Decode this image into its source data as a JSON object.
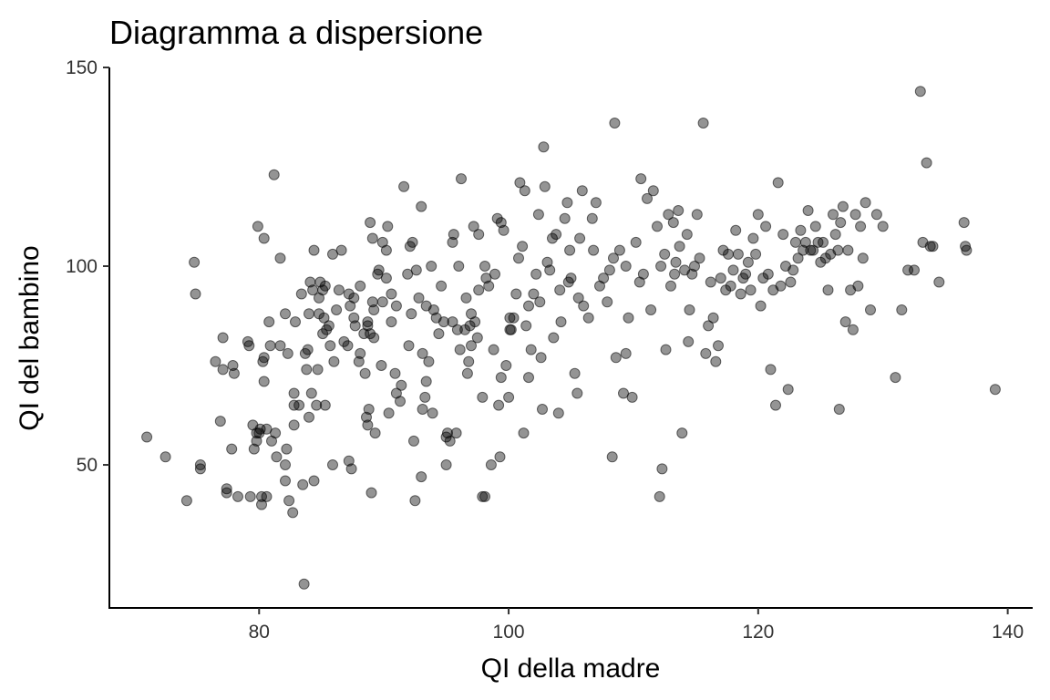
{
  "chart_data": {
    "type": "scatter",
    "title": "Diagramma a dispersione",
    "xlabel": "QI della madre",
    "ylabel": "QI del bambino",
    "xlim": [
      68,
      142
    ],
    "ylim": [
      14,
      150
    ],
    "xticks": [
      80,
      100,
      120,
      140
    ],
    "yticks": [
      50,
      100,
      150
    ],
    "grid": false,
    "point_color": "#000000",
    "point_opacity": 0.42,
    "points": [
      [
        71.0,
        57
      ],
      [
        72.5,
        52
      ],
      [
        74.2,
        41
      ],
      [
        74.8,
        101
      ],
      [
        74.9,
        93
      ],
      [
        75.3,
        50
      ],
      [
        75.3,
        49
      ],
      [
        76.5,
        76
      ],
      [
        76.9,
        61
      ],
      [
        77.1,
        82
      ],
      [
        77.1,
        74
      ],
      [
        77.4,
        44
      ],
      [
        77.4,
        43
      ],
      [
        77.8,
        54
      ],
      [
        77.9,
        75
      ],
      [
        78.0,
        73
      ],
      [
        78.3,
        42
      ],
      [
        79.1,
        81
      ],
      [
        79.2,
        80
      ],
      [
        79.3,
        42
      ],
      [
        79.5,
        60
      ],
      [
        79.6,
        54
      ],
      [
        79.8,
        58
      ],
      [
        79.8,
        56
      ],
      [
        79.9,
        110
      ],
      [
        80.0,
        58
      ],
      [
        80.1,
        59
      ],
      [
        80.2,
        42
      ],
      [
        80.2,
        40
      ],
      [
        80.3,
        76
      ],
      [
        80.4,
        77
      ],
      [
        80.4,
        71
      ],
      [
        80.4,
        107
      ],
      [
        80.6,
        59
      ],
      [
        80.6,
        42
      ],
      [
        80.8,
        86
      ],
      [
        80.9,
        80
      ],
      [
        81.0,
        56
      ],
      [
        81.2,
        123
      ],
      [
        81.3,
        58
      ],
      [
        81.4,
        52
      ],
      [
        81.7,
        102
      ],
      [
        81.7,
        80
      ],
      [
        82.1,
        88
      ],
      [
        82.1,
        46
      ],
      [
        82.1,
        50
      ],
      [
        82.2,
        54
      ],
      [
        82.3,
        78
      ],
      [
        82.4,
        41
      ],
      [
        82.7,
        38
      ],
      [
        82.8,
        65
      ],
      [
        82.8,
        68
      ],
      [
        82.8,
        60
      ],
      [
        82.9,
        86
      ],
      [
        83.2,
        65
      ],
      [
        83.4,
        93
      ],
      [
        83.5,
        45
      ],
      [
        83.6,
        20
      ],
      [
        83.7,
        78
      ],
      [
        83.8,
        74
      ],
      [
        83.9,
        79
      ],
      [
        84.0,
        62
      ],
      [
        84.0,
        88
      ],
      [
        84.1,
        96
      ],
      [
        84.2,
        68
      ],
      [
        84.3,
        94
      ],
      [
        84.4,
        104
      ],
      [
        84.4,
        46
      ],
      [
        84.6,
        65
      ],
      [
        84.7,
        74
      ],
      [
        84.8,
        92
      ],
      [
        84.8,
        88
      ],
      [
        84.9,
        96
      ],
      [
        85.1,
        83
      ],
      [
        85.1,
        94
      ],
      [
        85.2,
        87
      ],
      [
        85.3,
        95
      ],
      [
        85.3,
        65
      ],
      [
        85.4,
        84
      ],
      [
        85.6,
        85
      ],
      [
        85.7,
        80
      ],
      [
        85.9,
        103
      ],
      [
        85.9,
        50
      ],
      [
        86.0,
        76
      ],
      [
        86.2,
        89
      ],
      [
        86.4,
        94
      ],
      [
        86.6,
        104
      ],
      [
        86.8,
        81
      ],
      [
        87.1,
        80
      ],
      [
        87.2,
        51
      ],
      [
        87.2,
        93
      ],
      [
        87.3,
        90
      ],
      [
        87.4,
        49
      ],
      [
        87.6,
        87
      ],
      [
        87.6,
        92
      ],
      [
        87.7,
        85
      ],
      [
        88.0,
        76
      ],
      [
        88.1,
        78
      ],
      [
        88.1,
        95
      ],
      [
        88.4,
        83
      ],
      [
        88.5,
        73
      ],
      [
        88.6,
        62
      ],
      [
        88.7,
        86
      ],
      [
        88.7,
        85
      ],
      [
        88.7,
        60
      ],
      [
        88.8,
        64
      ],
      [
        88.9,
        83
      ],
      [
        88.9,
        111
      ],
      [
        89.0,
        43
      ],
      [
        89.1,
        91
      ],
      [
        89.1,
        107
      ],
      [
        89.2,
        89
      ],
      [
        89.2,
        82
      ],
      [
        89.3,
        58
      ],
      [
        89.5,
        98
      ],
      [
        89.6,
        99
      ],
      [
        89.8,
        75
      ],
      [
        89.9,
        91
      ],
      [
        89.9,
        106
      ],
      [
        90.2,
        104
      ],
      [
        90.2,
        97
      ],
      [
        90.3,
        110
      ],
      [
        90.4,
        63
      ],
      [
        90.6,
        93
      ],
      [
        90.6,
        86
      ],
      [
        90.9,
        73
      ],
      [
        91.0,
        90
      ],
      [
        91.0,
        68
      ],
      [
        91.3,
        66
      ],
      [
        91.4,
        70
      ],
      [
        91.6,
        120
      ],
      [
        91.9,
        98
      ],
      [
        92.0,
        80
      ],
      [
        92.1,
        105
      ],
      [
        92.2,
        88
      ],
      [
        92.3,
        106
      ],
      [
        92.4,
        56
      ],
      [
        92.5,
        41
      ],
      [
        92.6,
        99
      ],
      [
        92.8,
        92
      ],
      [
        93.0,
        47
      ],
      [
        93.0,
        115
      ],
      [
        93.1,
        78
      ],
      [
        93.1,
        64
      ],
      [
        93.3,
        67
      ],
      [
        93.4,
        90
      ],
      [
        93.4,
        71
      ],
      [
        93.6,
        76
      ],
      [
        93.8,
        100
      ],
      [
        93.9,
        63
      ],
      [
        94.0,
        89
      ],
      [
        94.2,
        87
      ],
      [
        94.4,
        83
      ],
      [
        94.6,
        95
      ],
      [
        94.8,
        86
      ],
      [
        95.0,
        50
      ],
      [
        95.0,
        57
      ],
      [
        95.1,
        58
      ],
      [
        95.3,
        56
      ],
      [
        95.5,
        86
      ],
      [
        95.5,
        106
      ],
      [
        95.6,
        108
      ],
      [
        95.8,
        58
      ],
      [
        95.9,
        84
      ],
      [
        96.0,
        100
      ],
      [
        96.1,
        79
      ],
      [
        96.2,
        122
      ],
      [
        96.5,
        84
      ],
      [
        96.6,
        92
      ],
      [
        96.7,
        73
      ],
      [
        96.8,
        76
      ],
      [
        96.9,
        85
      ],
      [
        97.0,
        80
      ],
      [
        97.0,
        88
      ],
      [
        97.2,
        110
      ],
      [
        97.3,
        86
      ],
      [
        97.5,
        82
      ],
      [
        97.6,
        94
      ],
      [
        97.6,
        108
      ],
      [
        97.9,
        67
      ],
      [
        97.9,
        42
      ],
      [
        98.1,
        42
      ],
      [
        98.1,
        100
      ],
      [
        98.2,
        97
      ],
      [
        98.4,
        95
      ],
      [
        98.6,
        50
      ],
      [
        98.8,
        79
      ],
      [
        98.9,
        98
      ],
      [
        99.1,
        112
      ],
      [
        99.2,
        65
      ],
      [
        99.3,
        52
      ],
      [
        99.4,
        72
      ],
      [
        99.4,
        111
      ],
      [
        99.6,
        109
      ],
      [
        99.8,
        75
      ],
      [
        100.0,
        67
      ],
      [
        100.1,
        84
      ],
      [
        100.1,
        87
      ],
      [
        100.2,
        84
      ],
      [
        100.4,
        87
      ],
      [
        100.6,
        93
      ],
      [
        100.8,
        102
      ],
      [
        100.9,
        121
      ],
      [
        101.1,
        105
      ],
      [
        101.2,
        58
      ],
      [
        101.3,
        119
      ],
      [
        101.4,
        85
      ],
      [
        101.6,
        72
      ],
      [
        101.6,
        90
      ],
      [
        101.8,
        79
      ],
      [
        102.0,
        93
      ],
      [
        102.2,
        98
      ],
      [
        102.4,
        113
      ],
      [
        102.5,
        91
      ],
      [
        102.6,
        77
      ],
      [
        102.7,
        64
      ],
      [
        102.8,
        130
      ],
      [
        102.9,
        120
      ],
      [
        103.1,
        101
      ],
      [
        103.3,
        99
      ],
      [
        103.5,
        107
      ],
      [
        103.6,
        82
      ],
      [
        103.8,
        108
      ],
      [
        104.0,
        63
      ],
      [
        104.1,
        94
      ],
      [
        104.2,
        86
      ],
      [
        104.5,
        112
      ],
      [
        104.7,
        116
      ],
      [
        104.8,
        96
      ],
      [
        104.9,
        104
      ],
      [
        105.0,
        97
      ],
      [
        105.3,
        73
      ],
      [
        105.5,
        68
      ],
      [
        105.6,
        92
      ],
      [
        105.7,
        107
      ],
      [
        105.9,
        119
      ],
      [
        106.0,
        90
      ],
      [
        106.4,
        87
      ],
      [
        106.7,
        112
      ],
      [
        106.8,
        104
      ],
      [
        107.0,
        116
      ],
      [
        107.3,
        95
      ],
      [
        107.6,
        97
      ],
      [
        107.9,
        91
      ],
      [
        108.1,
        99
      ],
      [
        108.3,
        52
      ],
      [
        108.4,
        102
      ],
      [
        108.5,
        136
      ],
      [
        108.6,
        77
      ],
      [
        108.9,
        104
      ],
      [
        109.2,
        68
      ],
      [
        109.4,
        78
      ],
      [
        109.4,
        100
      ],
      [
        109.6,
        87
      ],
      [
        109.9,
        67
      ],
      [
        110.2,
        106
      ],
      [
        110.5,
        96
      ],
      [
        110.6,
        122
      ],
      [
        110.8,
        98
      ],
      [
        111.1,
        117
      ],
      [
        111.4,
        89
      ],
      [
        111.6,
        119
      ],
      [
        111.9,
        110
      ],
      [
        112.1,
        42
      ],
      [
        112.2,
        100
      ],
      [
        112.3,
        49
      ],
      [
        112.5,
        103
      ],
      [
        112.6,
        79
      ],
      [
        112.8,
        113
      ],
      [
        113.0,
        95
      ],
      [
        113.2,
        111
      ],
      [
        113.3,
        98
      ],
      [
        113.4,
        101
      ],
      [
        113.6,
        114
      ],
      [
        113.7,
        105
      ],
      [
        113.9,
        58
      ],
      [
        114.1,
        99
      ],
      [
        114.3,
        108
      ],
      [
        114.4,
        81
      ],
      [
        114.5,
        89
      ],
      [
        114.7,
        98
      ],
      [
        114.9,
        100
      ],
      [
        115.1,
        113
      ],
      [
        115.3,
        102
      ],
      [
        115.6,
        136
      ],
      [
        115.8,
        78
      ],
      [
        116.0,
        85
      ],
      [
        116.2,
        96
      ],
      [
        116.4,
        87
      ],
      [
        116.6,
        76
      ],
      [
        116.8,
        80
      ],
      [
        117.0,
        97
      ],
      [
        117.2,
        104
      ],
      [
        117.4,
        94
      ],
      [
        117.6,
        103
      ],
      [
        117.8,
        95
      ],
      [
        118.0,
        99
      ],
      [
        118.2,
        109
      ],
      [
        118.4,
        103
      ],
      [
        118.6,
        93
      ],
      [
        118.8,
        97
      ],
      [
        119.0,
        98
      ],
      [
        119.2,
        101
      ],
      [
        119.4,
        94
      ],
      [
        119.6,
        107
      ],
      [
        119.8,
        103
      ],
      [
        120.0,
        113
      ],
      [
        120.2,
        90
      ],
      [
        120.4,
        97
      ],
      [
        120.6,
        110
      ],
      [
        120.8,
        98
      ],
      [
        121.0,
        74
      ],
      [
        121.2,
        94
      ],
      [
        121.4,
        65
      ],
      [
        121.6,
        121
      ],
      [
        121.8,
        95
      ],
      [
        122.0,
        108
      ],
      [
        122.2,
        100
      ],
      [
        122.4,
        69
      ],
      [
        122.6,
        96
      ],
      [
        122.8,
        99
      ],
      [
        123.0,
        106
      ],
      [
        123.2,
        102
      ],
      [
        123.4,
        109
      ],
      [
        123.6,
        104
      ],
      [
        123.8,
        106
      ],
      [
        124.0,
        114
      ],
      [
        124.2,
        104
      ],
      [
        124.4,
        104
      ],
      [
        124.6,
        110
      ],
      [
        124.8,
        106
      ],
      [
        125.0,
        101
      ],
      [
        125.2,
        106
      ],
      [
        125.4,
        102
      ],
      [
        125.6,
        94
      ],
      [
        125.8,
        103
      ],
      [
        126.0,
        113
      ],
      [
        126.2,
        108
      ],
      [
        126.4,
        104
      ],
      [
        126.5,
        64
      ],
      [
        126.6,
        111
      ],
      [
        126.8,
        115
      ],
      [
        127.0,
        86
      ],
      [
        127.2,
        104
      ],
      [
        127.4,
        94
      ],
      [
        127.6,
        84
      ],
      [
        127.8,
        113
      ],
      [
        128.0,
        95
      ],
      [
        128.2,
        110
      ],
      [
        128.4,
        102
      ],
      [
        128.6,
        116
      ],
      [
        129.0,
        89
      ],
      [
        129.5,
        113
      ],
      [
        130.0,
        110
      ],
      [
        131.0,
        72
      ],
      [
        131.5,
        89
      ],
      [
        132.0,
        99
      ],
      [
        132.5,
        99
      ],
      [
        133.0,
        144
      ],
      [
        133.2,
        106
      ],
      [
        133.5,
        126
      ],
      [
        133.8,
        105
      ],
      [
        134.0,
        105
      ],
      [
        134.5,
        96
      ],
      [
        136.5,
        111
      ],
      [
        136.6,
        105
      ],
      [
        136.7,
        104
      ],
      [
        139.0,
        69
      ]
    ]
  }
}
